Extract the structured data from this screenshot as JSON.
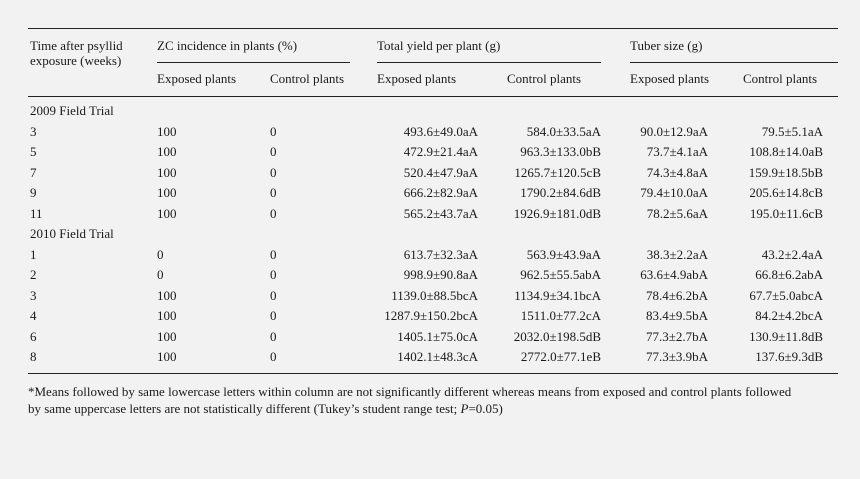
{
  "headers": {
    "time_line1": "Time after psyllid",
    "time_line2": "exposure (weeks)",
    "zc": "ZC incidence in plants (%)",
    "yield": "Total yield per plant (g)",
    "tuber": "Tuber size (g)",
    "exposed": "Exposed plants",
    "control": "Control plants"
  },
  "sections": [
    {
      "title": "2009 Field Trial",
      "rows": [
        {
          "week": "3",
          "zc_exp": "100",
          "zc_ctl": "0",
          "y_exp": "493.6±49.0aA",
          "y_ctl": "584.0±33.5aA",
          "t_exp": "90.0±12.9aA",
          "t_ctl": "79.5±5.1aA"
        },
        {
          "week": "5",
          "zc_exp": "100",
          "zc_ctl": "0",
          "y_exp": "472.9±21.4aA",
          "y_ctl": "963.3±133.0bB",
          "t_exp": "73.7±4.1aA",
          "t_ctl": "108.8±14.0aB"
        },
        {
          "week": "7",
          "zc_exp": "100",
          "zc_ctl": "0",
          "y_exp": "520.4±47.9aA",
          "y_ctl": "1265.7±120.5cB",
          "t_exp": "74.3±4.8aA",
          "t_ctl": "159.9±18.5bB"
        },
        {
          "week": "9",
          "zc_exp": "100",
          "zc_ctl": "0",
          "y_exp": "666.2±82.9aA",
          "y_ctl": "1790.2±84.6dB",
          "t_exp": "79.4±10.0aA",
          "t_ctl": "205.6±14.8cB"
        },
        {
          "week": "11",
          "zc_exp": "100",
          "zc_ctl": "0",
          "y_exp": "565.2±43.7aA",
          "y_ctl": "1926.9±181.0dB",
          "t_exp": "78.2±5.6aA",
          "t_ctl": "195.0±11.6cB"
        }
      ]
    },
    {
      "title": "2010 Field Trial",
      "rows": [
        {
          "week": "1",
          "zc_exp": "0",
          "zc_ctl": "0",
          "y_exp": "613.7±32.3aA",
          "y_ctl": "563.9±43.9aA",
          "t_exp": "38.3±2.2aA",
          "t_ctl": "43.2±2.4aA"
        },
        {
          "week": "2",
          "zc_exp": "0",
          "zc_ctl": "0",
          "y_exp": "998.9±90.8aA",
          "y_ctl": "962.5±55.5abA",
          "t_exp": "63.6±4.9abA",
          "t_ctl": "66.8±6.2abA"
        },
        {
          "week": "3",
          "zc_exp": "100",
          "zc_ctl": "0",
          "y_exp": "1139.0±88.5bcA",
          "y_ctl": "1134.9±34.1bcA",
          "t_exp": "78.4±6.2bA",
          "t_ctl": "67.7±5.0abcA"
        },
        {
          "week": "4",
          "zc_exp": "100",
          "zc_ctl": "0",
          "y_exp": "1287.9±150.2bcA",
          "y_ctl": "1511.0±77.2cA",
          "t_exp": "83.4±9.5bA",
          "t_ctl": "84.2±4.2bcA"
        },
        {
          "week": "6",
          "zc_exp": "100",
          "zc_ctl": "0",
          "y_exp": "1405.1±75.0cA",
          "y_ctl": "2032.0±198.5dB",
          "t_exp": "77.3±2.7bA",
          "t_ctl": "130.9±11.8dB"
        },
        {
          "week": "8",
          "zc_exp": "100",
          "zc_ctl": "0",
          "y_exp": "1402.1±48.3cA",
          "y_ctl": "2772.0±77.1eB",
          "t_exp": "77.3±3.9bA",
          "t_ctl": "137.6±9.3dB"
        }
      ]
    }
  ],
  "footnote": {
    "line1": "*Means followed by same lowercase letters within column are not significantly different whereas means from exposed and control plants followed",
    "line2_pre": "by same uppercase letters are not statistically different (Tukey’s student range test; ",
    "p_symbol": "P",
    "line2_post": "=0.05)"
  }
}
